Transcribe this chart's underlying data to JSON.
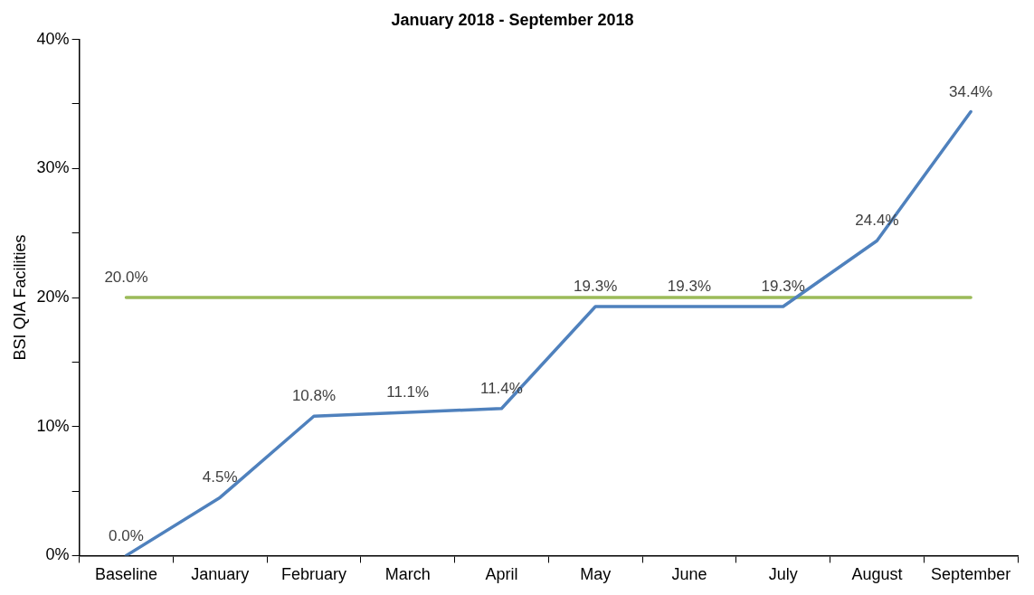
{
  "chart_data": {
    "type": "line",
    "title": "January 2018 - September 2018",
    "ylabel": "BSI QIA Facilities",
    "categories": [
      "Baseline",
      "January",
      "February",
      "March",
      "April",
      "May",
      "June",
      "July",
      "August",
      "September"
    ],
    "series": [
      {
        "color": "#4f81bd",
        "values": [
          0.0,
          4.5,
          10.8,
          11.1,
          11.4,
          19.3,
          19.3,
          19.3,
          24.4,
          34.4
        ],
        "value_labels": [
          "0.0%",
          "4.5%",
          "10.8%",
          "11.1%",
          "11.4%",
          "19.3%",
          "19.3%",
          "19.3%",
          "24.4%",
          "34.4%"
        ]
      },
      {
        "color": "#9bbb59",
        "values": [
          20,
          20,
          20,
          20,
          20,
          20,
          20,
          20,
          20,
          20
        ],
        "value_labels": [
          "20.0%",
          null,
          null,
          null,
          null,
          null,
          null,
          null,
          null,
          null
        ]
      }
    ],
    "ylim": [
      0,
      40
    ],
    "yticks": [
      {
        "value": 0,
        "label": "0%"
      },
      {
        "value": 5,
        "label": null
      },
      {
        "value": 10,
        "label": "10%"
      },
      {
        "value": 15,
        "label": null
      },
      {
        "value": 20,
        "label": "20%"
      },
      {
        "value": 25,
        "label": null
      },
      {
        "value": 30,
        "label": "30%"
      },
      {
        "value": 35,
        "label": null
      },
      {
        "value": 40,
        "label": "40%"
      }
    ],
    "grid": false,
    "legend": false,
    "marker": "none",
    "line_style": "solid"
  }
}
